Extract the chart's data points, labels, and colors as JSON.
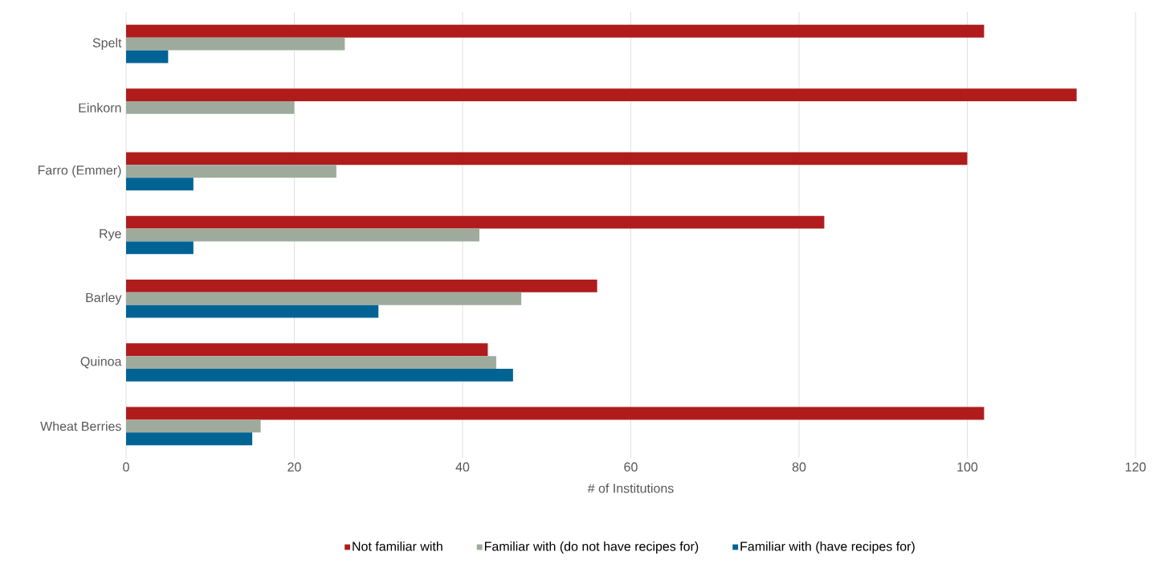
{
  "chart_data": {
    "type": "bar",
    "orientation": "horizontal",
    "xlabel": "# of Institutions",
    "categories": [
      "Spelt",
      "Einkorn",
      "Farro (Emmer)",
      "Rye",
      "Barley",
      "Quinoa",
      "Wheat Berries"
    ],
    "series": [
      {
        "name": "Not familiar with",
        "color": "#b01c1c",
        "values": [
          102,
          113,
          100,
          83,
          56,
          43,
          102
        ]
      },
      {
        "name": "Familiar with (do not have recipes for)",
        "color": "#9eab9c",
        "values": [
          26,
          20,
          25,
          42,
          47,
          44,
          16
        ]
      },
      {
        "name": "Familiar with (have recipes for)",
        "color": "#006394",
        "values": [
          5,
          0,
          8,
          8,
          30,
          46,
          15
        ]
      }
    ],
    "xlim": [
      0,
      120
    ],
    "xticks": [
      0,
      20,
      40,
      60,
      80,
      100,
      120
    ],
    "grid": "x",
    "legend": "bottom"
  }
}
